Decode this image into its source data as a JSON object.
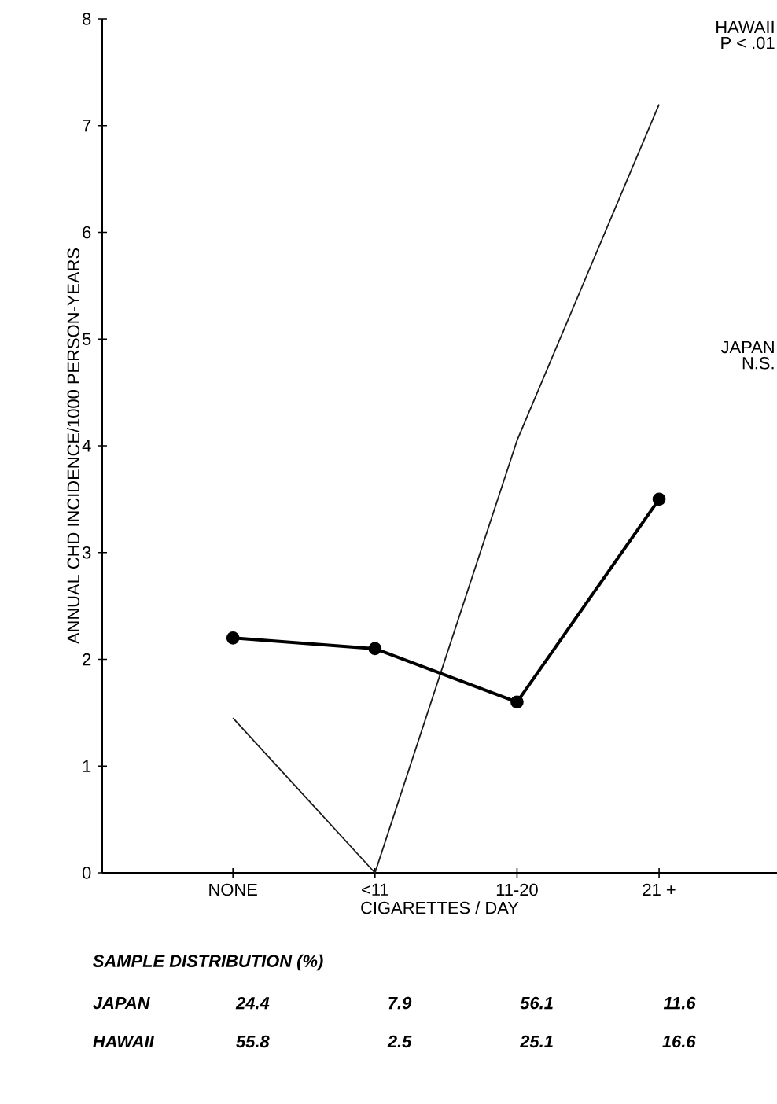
{
  "chart_data": {
    "type": "line",
    "xlabel": "CIGARETTES / DAY",
    "ylabel": "ANNUAL CHD INCIDENCE/1000 PERSON-YEARS",
    "categories": [
      "NONE",
      "<11",
      "11-20",
      "21 +"
    ],
    "series": [
      {
        "name": "HAWAII",
        "color": "#1a1a1a",
        "marker": "none",
        "values": [
          1.45,
          0,
          4.05,
          7.2
        ]
      },
      {
        "name": "JAPAN",
        "color": "#000000",
        "marker": "circle",
        "values": [
          2.2,
          2.1,
          1.6,
          3.5
        ]
      }
    ],
    "ylim": [
      0,
      8
    ],
    "yticks": [
      0,
      1,
      2,
      3,
      4,
      5,
      6,
      7,
      8
    ],
    "grid": false,
    "legend": false,
    "annotations": [
      "P < .01",
      "N.S.",
      "SAMPLE DISTRIBUTION (%)",
      "JAPAN",
      "24.4",
      "7.9",
      "56.1",
      "11.6",
      "HAWAII",
      "55.8",
      "2.5",
      "25.1",
      "16.6"
    ]
  }
}
